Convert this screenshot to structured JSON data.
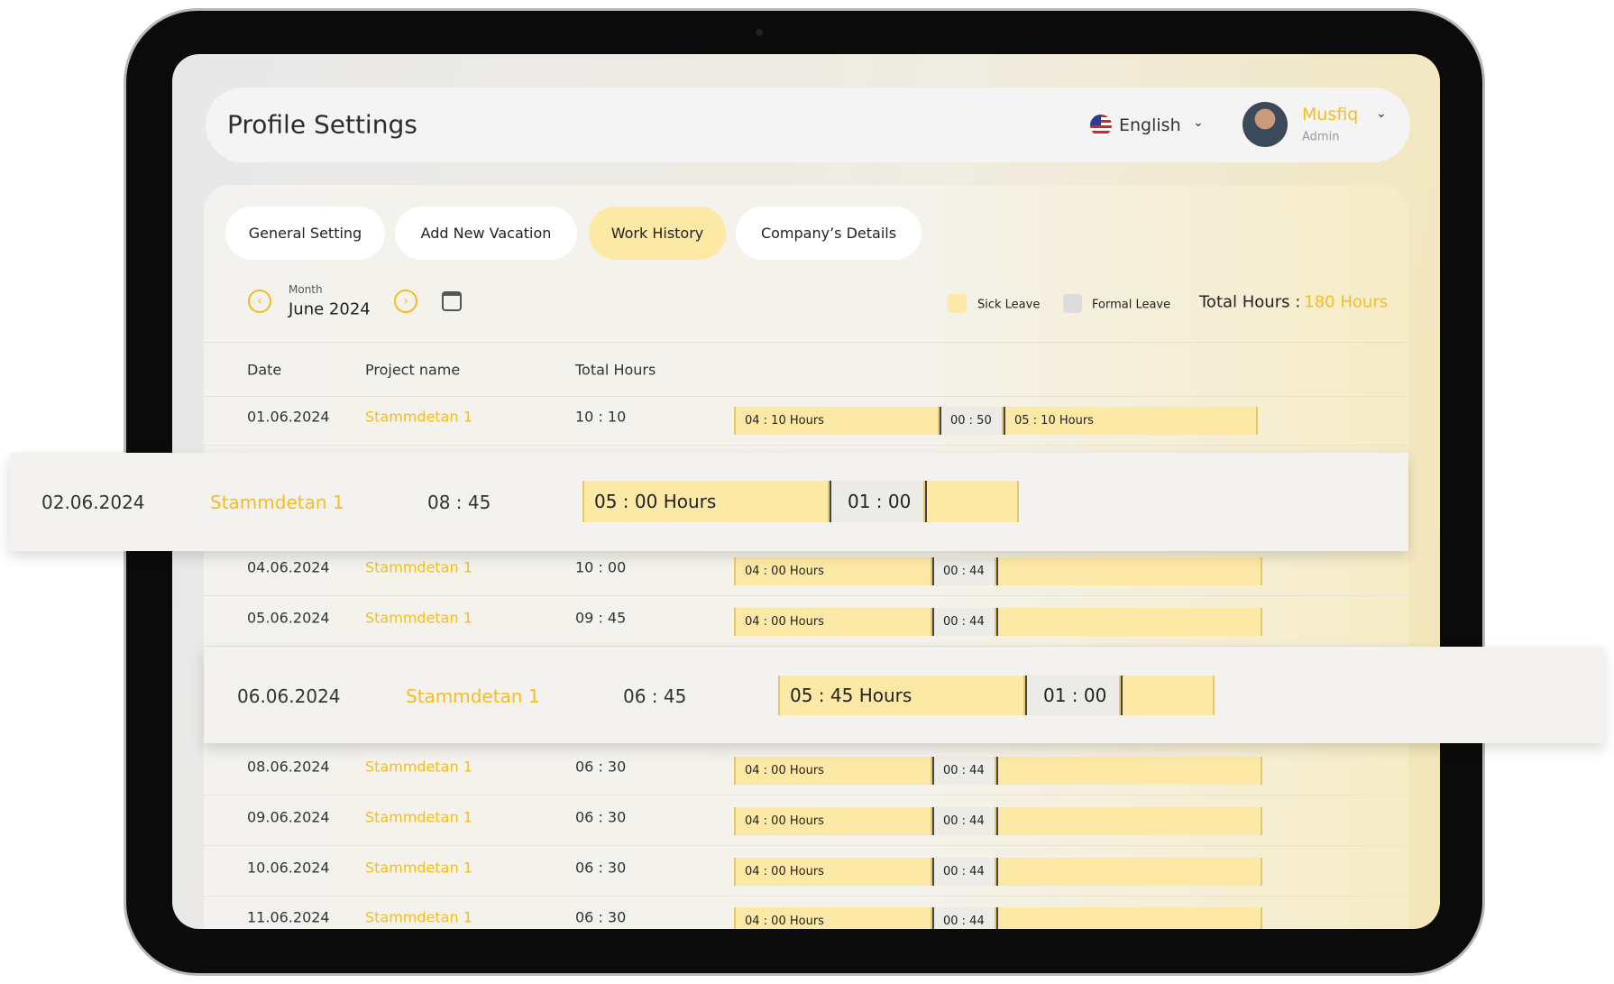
{
  "header": {
    "title": "Profile Settings",
    "language": "English",
    "user": {
      "name": "Musfiq",
      "role": "Admin"
    }
  },
  "tabs": [
    {
      "label": "General Setting",
      "active": false
    },
    {
      "label": "Add New Vacation",
      "active": false
    },
    {
      "label": "Work History",
      "active": true
    },
    {
      "label": "Company’s Details",
      "active": false
    }
  ],
  "filter": {
    "month_label": "Month",
    "month": "June 2024"
  },
  "legend": [
    {
      "label": "Sick Leave",
      "color": "#fde9a6"
    },
    {
      "label": "Formal Leave",
      "color": "#dcdcdc"
    }
  ],
  "total": {
    "label": "Total Hours :",
    "value": "180 Hours"
  },
  "table": {
    "columns": [
      "Date",
      "Project name",
      "Total Hours"
    ],
    "rows": [
      {
        "date": "01.06.2024",
        "project": "Stammdetan 1",
        "total": "10 : 10",
        "segments": [
          "04 : 10 Hours",
          "00 : 50",
          "05 : 10 Hours"
        ],
        "highlighted": false
      },
      {
        "date": "02.06.2024",
        "project": "Stammdetan 1",
        "total": "08 : 45",
        "segments": [
          "05 : 00 Hours",
          "01 : 00"
        ],
        "highlighted": true
      },
      {
        "date": "04.06.2024",
        "project": "Stammdetan 1",
        "total": "10 : 00",
        "segments": [
          "04 : 00 Hours",
          "00 : 44"
        ],
        "highlighted": false
      },
      {
        "date": "05.06.2024",
        "project": "Stammdetan 1",
        "total": "09 : 45",
        "segments": [
          "04 : 00 Hours",
          "00 : 44"
        ],
        "highlighted": false
      },
      {
        "date": "06.06.2024",
        "project": "Stammdetan 1",
        "total": "06 : 45",
        "segments": [
          "05 : 45 Hours",
          "01 : 00"
        ],
        "highlighted": true
      },
      {
        "date": "08.06.2024",
        "project": "Stammdetan 1",
        "total": "06 : 30",
        "segments": [
          "04 : 00 Hours",
          "00 : 44"
        ],
        "highlighted": false
      },
      {
        "date": "09.06.2024",
        "project": "Stammdetan 1",
        "total": "06 : 30",
        "segments": [
          "04 : 00 Hours",
          "00 : 44"
        ],
        "highlighted": false
      },
      {
        "date": "10.06.2024",
        "project": "Stammdetan 1",
        "total": "06 : 30",
        "segments": [
          "04 : 00 Hours",
          "00 : 44"
        ],
        "highlighted": false
      },
      {
        "date": "11.06.2024",
        "project": "Stammdetan 1",
        "total": "06 : 30",
        "segments": [
          "04 : 00 Hours",
          "00 : 44"
        ],
        "highlighted": false
      }
    ]
  }
}
